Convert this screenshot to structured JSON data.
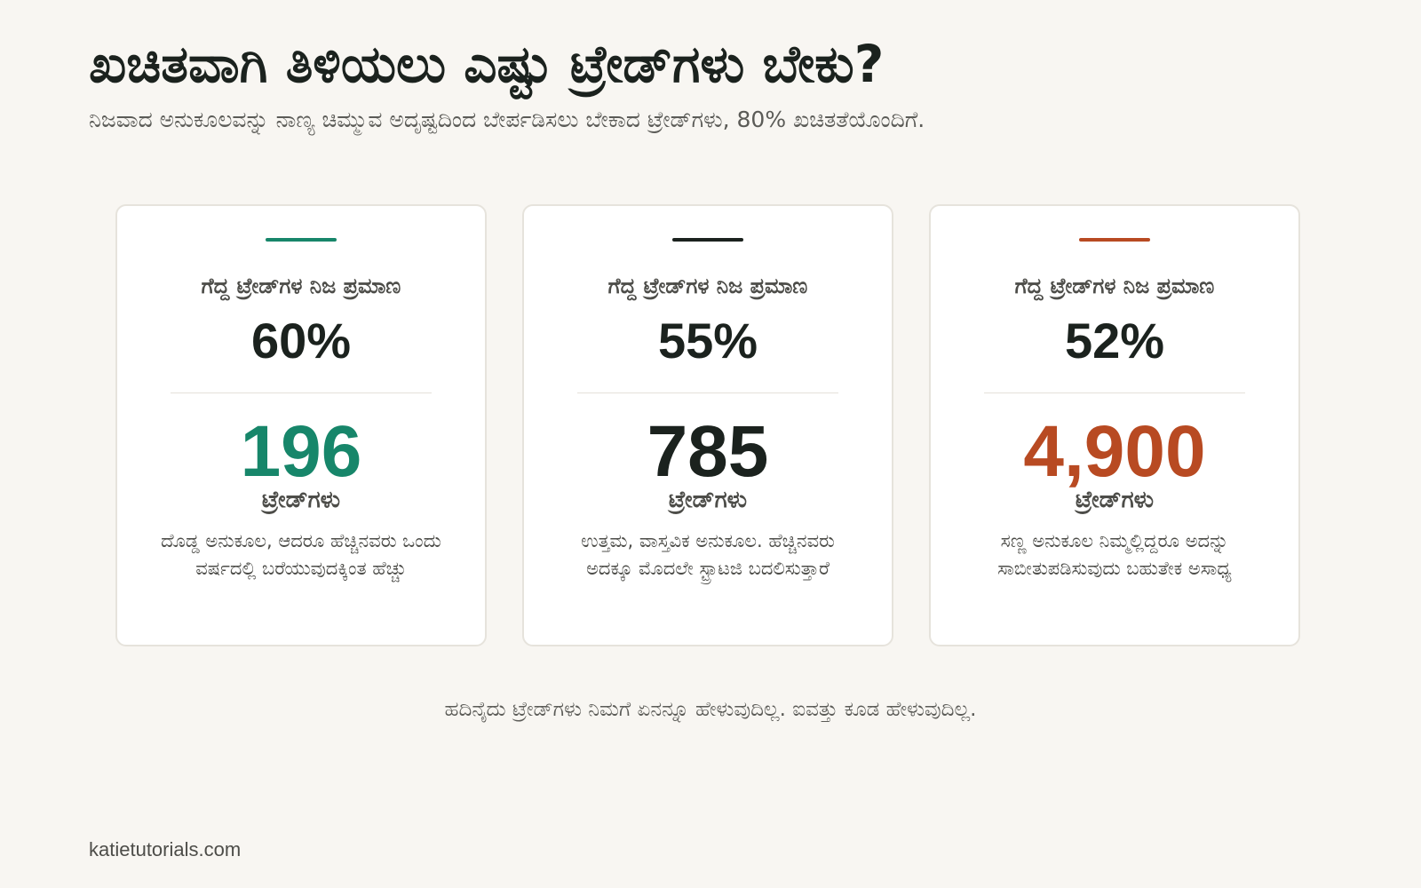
{
  "title": "ಖಚಿತವಾಗಿ ತಿಳಿಯಲು ಎಷ್ಟು ಟ್ರೇಡ್‌ಗಳು ಬೇಕು?",
  "subtitle": "ನಿಜವಾದ ಅನುಕೂಲವನ್ನು ನಾಣ್ಯ ಚಿಮ್ಮುವ ಅದೃಷ್ಟದಿಂದ ಬೇರ್ಪಡಿಸಲು ಬೇಕಾದ ಟ್ರೇಡ್‌ಗಳು, 80% ಖಚಿತತೆಯೊಂದಿಗೆ.",
  "cards": [
    {
      "accent_color": "#17866a",
      "label": "ಗೆದ್ದ ಟ್ರೇಡ್‌ಗಳ ನಿಜ ಪ್ರಮಾಣ",
      "win_rate": "60%",
      "trade_count": "196",
      "count_color": "#17866a",
      "unit": "ಟ್ರೇಡ್‌ಗಳು",
      "description": "ದೊಡ್ಡ ಅನುಕೂಲ, ಆದರೂ ಹೆಚ್ಚಿನವರು ಒಂದು ವರ್ಷದಲ್ಲಿ ಬರೆಯುವುದಕ್ಕಿಂತ ಹೆಚ್ಚು"
    },
    {
      "accent_color": "#1b221e",
      "label": "ಗೆದ್ದ ಟ್ರೇಡ್‌ಗಳ ನಿಜ ಪ್ರಮಾಣ",
      "win_rate": "55%",
      "trade_count": "785",
      "count_color": "#1b221e",
      "unit": "ಟ್ರೇಡ್‌ಗಳು",
      "description": "ಉತ್ತಮ, ವಾಸ್ತವಿಕ ಅನುಕೂಲ. ಹೆಚ್ಚಿನವರು ಅದಕ್ಕೂ ಮೊದಲೇ ಸ್ಟ್ರಾಟಜಿ ಬದಲಿಸುತ್ತಾರೆ"
    },
    {
      "accent_color": "#b84a22",
      "label": "ಗೆದ್ದ ಟ್ರೇಡ್‌ಗಳ ನಿಜ ಪ್ರಮಾಣ",
      "win_rate": "52%",
      "trade_count": "4,900",
      "count_color": "#b84a22",
      "unit": "ಟ್ರೇಡ್‌ಗಳು",
      "description": "ಸಣ್ಣ ಅನುಕೂಲ ನಿಮ್ಮಲ್ಲಿದ್ದರೂ ಅದನ್ನು ಸಾಬೀತುಪಡಿಸುವುದು ಬಹುತೇಕ ಅಸಾಧ್ಯ"
    }
  ],
  "footer_note": "ಹದಿನೈದು ಟ್ರೇಡ್‌ಗಳು ನಿಮಗೆ ಏನನ್ನೂ ಹೇಳುವುದಿಲ್ಲ. ಐವತ್ತು ಕೂಡ ಹೇಳುವುದಿಲ್ಲ.",
  "site": "katietutorials.com"
}
